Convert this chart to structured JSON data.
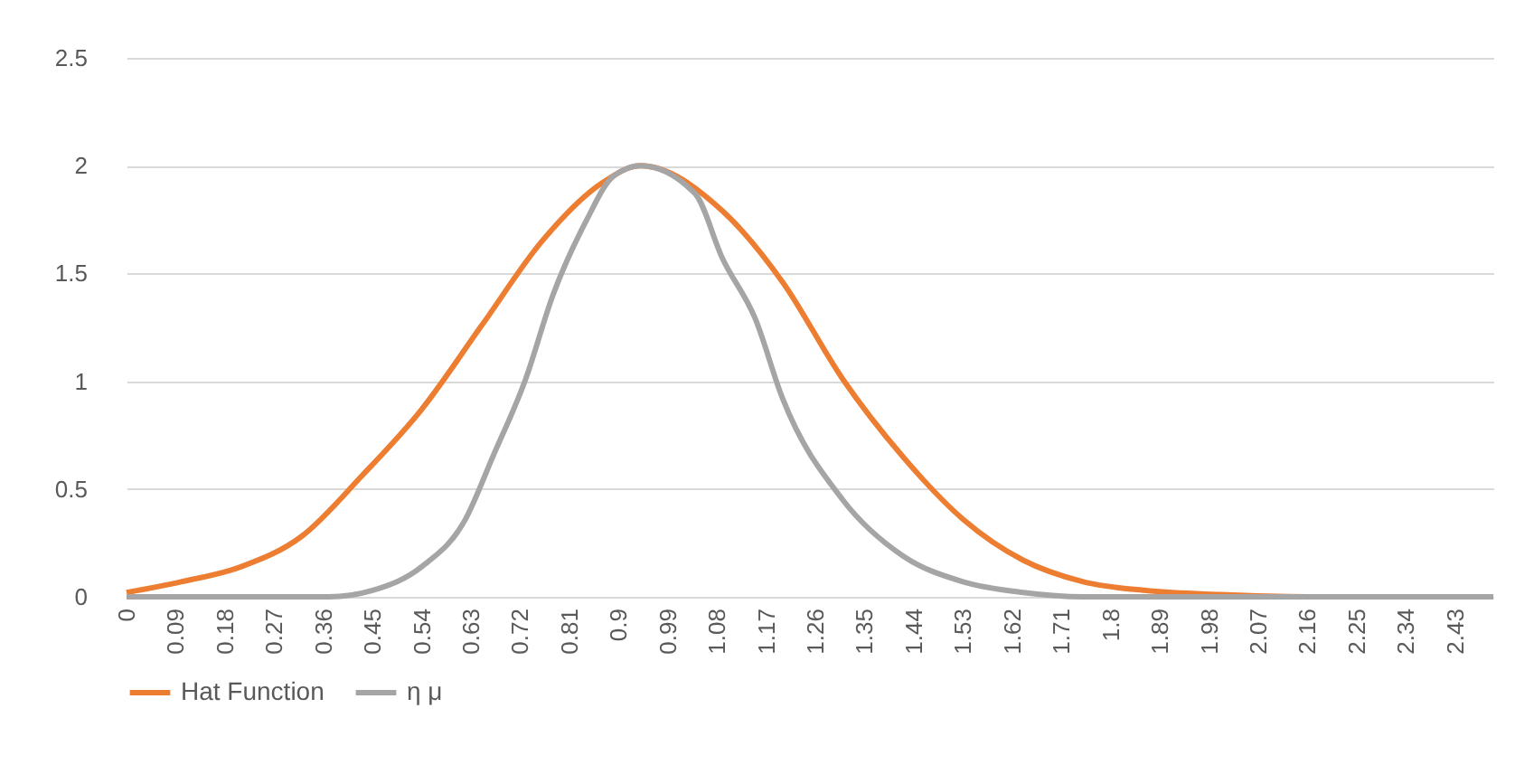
{
  "chart_data": {
    "type": "line",
    "xlim": [
      0,
      2.5
    ],
    "ylim": [
      0,
      2.5
    ],
    "xticks": [
      0,
      0.09,
      0.18,
      0.27,
      0.36,
      0.45,
      0.54,
      0.63,
      0.72,
      0.81,
      0.9,
      0.99,
      1.08,
      1.17,
      1.26,
      1.35,
      1.44,
      1.53,
      1.62,
      1.71,
      1.8,
      1.89,
      1.98,
      2.07,
      2.16,
      2.25,
      2.34,
      2.43
    ],
    "yticks": [
      0,
      0.5,
      1,
      1.5,
      2,
      2.5
    ],
    "grid": "y",
    "legend": "bottom",
    "marker": "none",
    "line_style": "solid",
    "series": [
      {
        "name": "Hat Function",
        "color": "#ed7d31",
        "x": [
          0,
          0.1,
          0.21,
          0.32,
          0.43,
          0.54,
          0.65,
          0.76,
          0.87,
          0.94,
          1.09,
          1.2,
          1.31,
          1.42,
          1.53,
          1.64,
          1.75,
          1.86,
          2.0,
          2.16,
          2.5
        ],
        "values": [
          0.02,
          0.07,
          0.14,
          0.28,
          0.56,
          0.87,
          1.26,
          1.65,
          1.92,
          2.0,
          1.79,
          1.46,
          1.01,
          0.65,
          0.36,
          0.17,
          0.07,
          0.03,
          0.01,
          0,
          0
        ]
      },
      {
        "name": "η μ",
        "color": "#a5a5a5",
        "x": [
          0,
          0.37,
          0.45,
          0.54,
          0.62,
          0.67,
          0.73,
          0.78,
          0.84,
          0.89,
          0.94,
          1.04,
          1.09,
          1.15,
          1.2,
          1.31,
          1.42,
          1.53,
          1.64,
          1.75,
          2.5
        ],
        "values": [
          0,
          0,
          0.03,
          0.14,
          0.36,
          0.65,
          1.01,
          1.4,
          1.74,
          1.95,
          2.0,
          1.87,
          1.57,
          1.29,
          0.92,
          0.45,
          0.19,
          0.07,
          0.02,
          0,
          0
        ]
      }
    ]
  }
}
